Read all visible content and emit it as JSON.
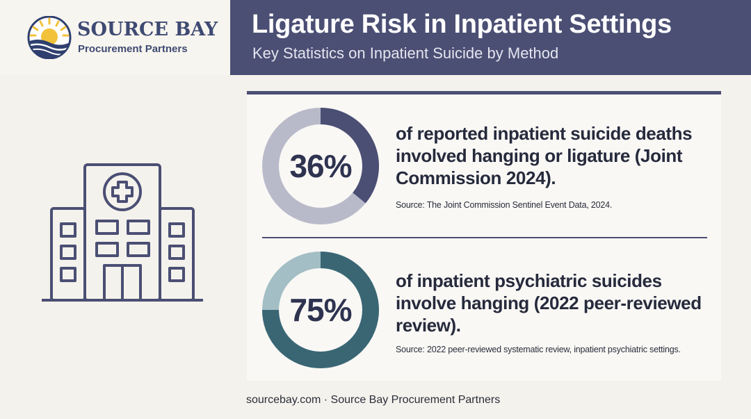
{
  "brand": {
    "name": "SOURCE BAY",
    "tagline": "Procurement Partners"
  },
  "header": {
    "title": "Ligature Risk in Inpatient Settings",
    "subtitle": "Key Statistics on Inpatient Suicide by Method"
  },
  "stats": [
    {
      "value": 36,
      "label": "36%",
      "text": "of reported inpatient suicide deaths involved hanging or ligature (Joint Commission 2024).",
      "source": "Source: The Joint Commission Sentinel Event Data, 2024.",
      "fill_color": "#4b4f74",
      "track_color": "#b9bac9"
    },
    {
      "value": 75,
      "label": "75%",
      "text": "of inpatient psychiatric suicides involve hanging (2022 peer-reviewed review).",
      "source": "Source: 2022 peer-reviewed systematic review, inpatient psychiatric settings.",
      "fill_color": "#3a6674",
      "track_color": "#a3bec4"
    }
  ],
  "footer": {
    "text": "sourcebay.com · Source Bay Procurement Partners"
  },
  "icons": {
    "logo": "sun-wave-logo-icon",
    "hospital": "hospital-building-icon"
  },
  "colors": {
    "header_bg": "#4b4f74",
    "brand_navy": "#3e4a72",
    "sun_yellow": "#f2c23a"
  }
}
